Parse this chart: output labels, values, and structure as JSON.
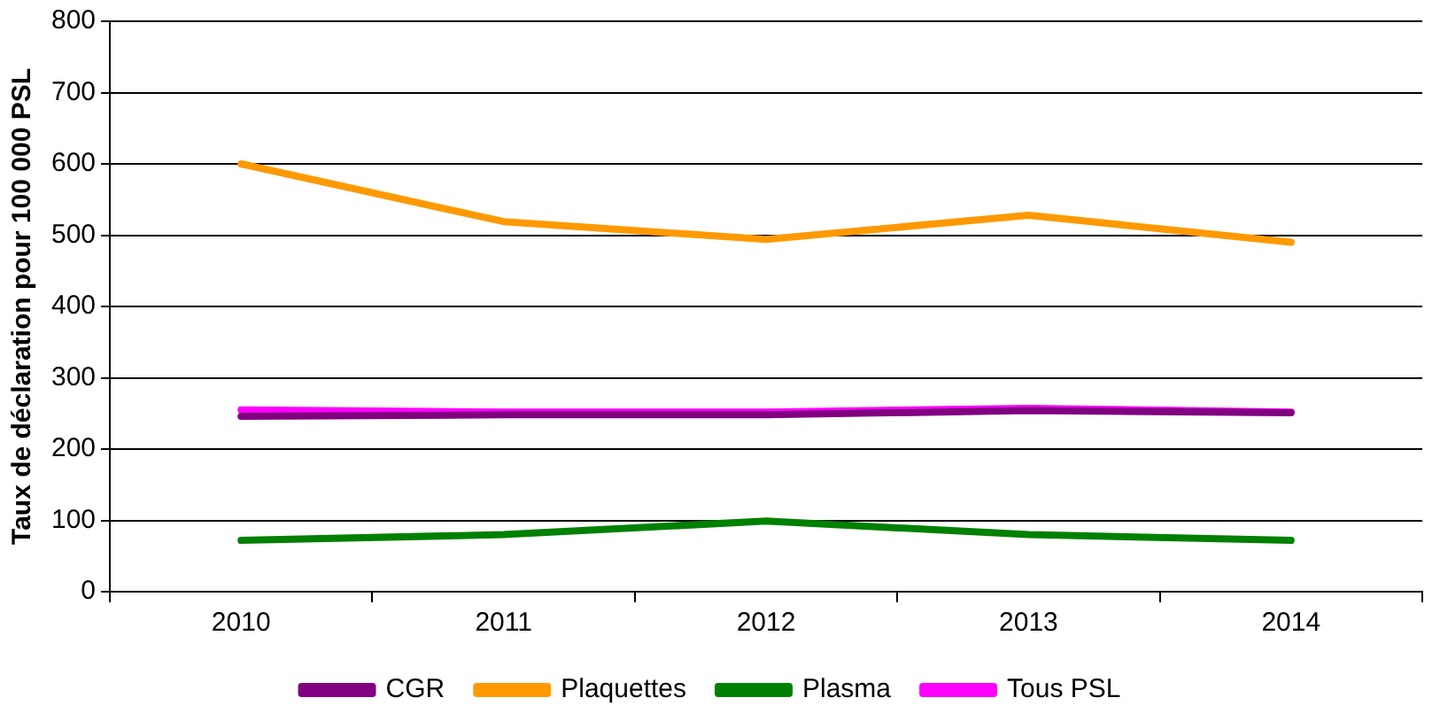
{
  "chart_data": {
    "type": "line",
    "ylabel": "Taux de déclaration pour 100 000 PSL",
    "categories": [
      "2010",
      "2011",
      "2012",
      "2013",
      "2014"
    ],
    "series": [
      {
        "name": "CGR",
        "color": "#800080",
        "values": [
          246,
          248,
          248,
          254,
          251
        ]
      },
      {
        "name": "Plaquettes",
        "color": "#ff9900",
        "values": [
          600,
          519,
          494,
          528,
          490
        ]
      },
      {
        "name": "Plasma",
        "color": "#008000",
        "values": [
          72,
          80,
          99,
          80,
          72
        ]
      },
      {
        "name": "Tous PSL",
        "color": "#ff00ff",
        "values": [
          255,
          252,
          252,
          257,
          252
        ]
      }
    ],
    "ylim": [
      0,
      800
    ],
    "yticks": [
      0,
      100,
      200,
      300,
      400,
      500,
      600,
      700,
      800
    ],
    "grid": "y",
    "legend": "bottom",
    "marker": "none",
    "line_style": "solid"
  }
}
